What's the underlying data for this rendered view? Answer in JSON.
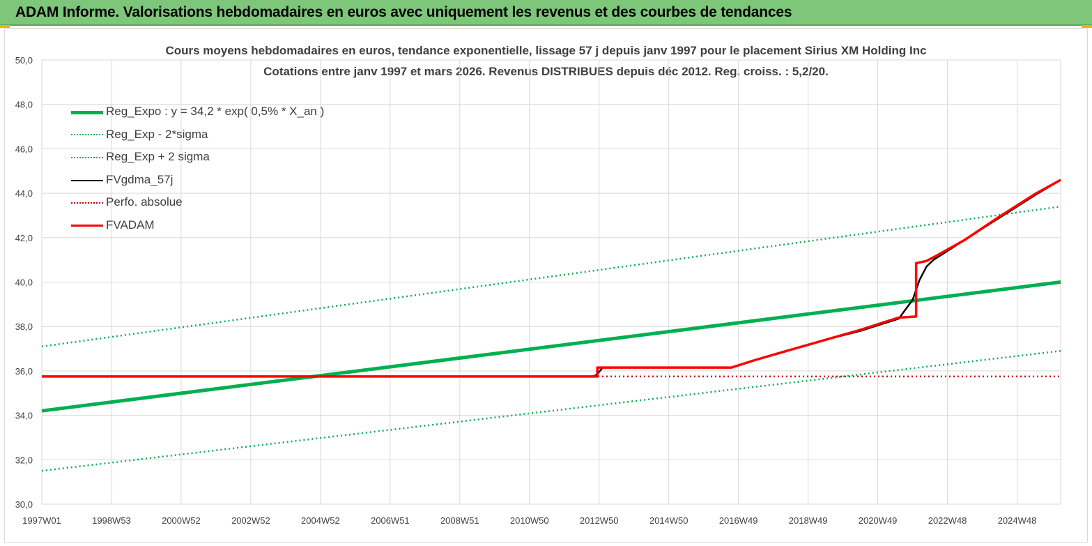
{
  "header": {
    "title": "ADAM Informe. Valorisations hebdomadaires en euros avec uniquement les revenus et des courbes de tendances"
  },
  "colors": {
    "header_bg": "#7dc67a",
    "accent_corner": "#f0b400",
    "reg_green": "#00b050",
    "band_green": "#00b050",
    "fv_black": "#000000",
    "perf_red": "#c00000",
    "adam_red": "#ff0000",
    "grid": "#d9d9d9",
    "text": "#404040"
  },
  "chart_data": {
    "type": "line",
    "title_line1": "Cours moyens hebdomadaires en euros, tendance exponentielle, lissage 57 j depuis janv 1997 pour le placement Sirius XM Holding Inc",
    "title_line2": "Cotations entre janv 1997 et mars 2026. Revenus DISTRIBUES depuis déc 2012. Reg. croiss. : 5,2/20.",
    "xlabel": "",
    "ylabel": "",
    "ylim": [
      30,
      50
    ],
    "xlim": [
      1997.0,
      2026.25
    ],
    "grid": true,
    "legend_position": "top-left",
    "y_ticks": [
      "30,0",
      "32,0",
      "34,0",
      "36,0",
      "38,0",
      "40,0",
      "42,0",
      "44,0",
      "46,0",
      "48,0",
      "50,0"
    ],
    "y_tick_values": [
      30,
      32,
      34,
      36,
      38,
      40,
      42,
      44,
      46,
      48,
      50
    ],
    "x_ticks": [
      "1997W01",
      "1998W53",
      "2000W52",
      "2002W52",
      "2004W52",
      "2006W51",
      "2008W51",
      "2010W50",
      "2012W50",
      "2014W50",
      "2016W49",
      "2018W49",
      "2020W49",
      "2022W48",
      "2024W48"
    ],
    "x_tick_values": [
      1997.0,
      1999.0,
      2001.0,
      2003.0,
      2005.0,
      2007.0,
      2009.0,
      2011.0,
      2013.0,
      2015.0,
      2017.0,
      2019.0,
      2021.0,
      2023.0,
      2025.0
    ],
    "series": [
      {
        "name": "Reg_Expo : y = 34,2 * exp( 0,5% *  X_an )",
        "style": "solid-thick",
        "color": "#00b050",
        "x": [
          1997.0,
          2026.25
        ],
        "y": [
          34.2,
          40.0
        ]
      },
      {
        "name": "Reg_Exp - 2*sigma",
        "style": "dotted",
        "color": "#00b050",
        "x": [
          1997.0,
          2026.25
        ],
        "y": [
          31.5,
          36.9
        ]
      },
      {
        "name": "Reg_Exp + 2 sigma",
        "style": "dotted",
        "color": "#00b050",
        "x": [
          1997.0,
          2026.25
        ],
        "y": [
          37.1,
          43.4
        ]
      },
      {
        "name": "FVgdma_57j",
        "style": "solid",
        "color": "#000000",
        "x": [
          1997.0,
          2012.8,
          2012.9,
          2013.0,
          2013.1,
          2016.8,
          2017.5,
          2018.5,
          2019.5,
          2020.5,
          2021.0,
          2021.6,
          2022.0,
          2022.2,
          2022.4,
          2022.6,
          2022.8,
          2023.5,
          2024.5,
          2025.5,
          2026.25
        ],
        "y": [
          35.75,
          35.75,
          35.8,
          35.95,
          36.15,
          36.15,
          36.5,
          36.95,
          37.4,
          37.8,
          38.05,
          38.35,
          39.2,
          40.1,
          40.7,
          41.0,
          41.2,
          41.9,
          42.9,
          43.9,
          44.6
        ]
      },
      {
        "name": "Perfo. absolue",
        "style": "dotted",
        "color": "#c00000",
        "x": [
          1997.0,
          2026.25
        ],
        "y": [
          35.75,
          35.75
        ]
      },
      {
        "name": "FVADAM",
        "style": "solid-step",
        "color": "#ff0000",
        "x": [
          1997.0,
          2012.95,
          2012.95,
          2016.8,
          2017.5,
          2018.5,
          2019.5,
          2020.5,
          2021.0,
          2021.6,
          2022.1,
          2022.1,
          2022.4,
          2022.7,
          2023.5,
          2024.5,
          2025.5,
          2026.25
        ],
        "y": [
          35.75,
          35.75,
          36.15,
          36.15,
          36.5,
          36.95,
          37.4,
          37.85,
          38.1,
          38.4,
          38.45,
          40.85,
          40.95,
          41.2,
          41.9,
          42.95,
          43.95,
          44.6
        ]
      }
    ]
  }
}
